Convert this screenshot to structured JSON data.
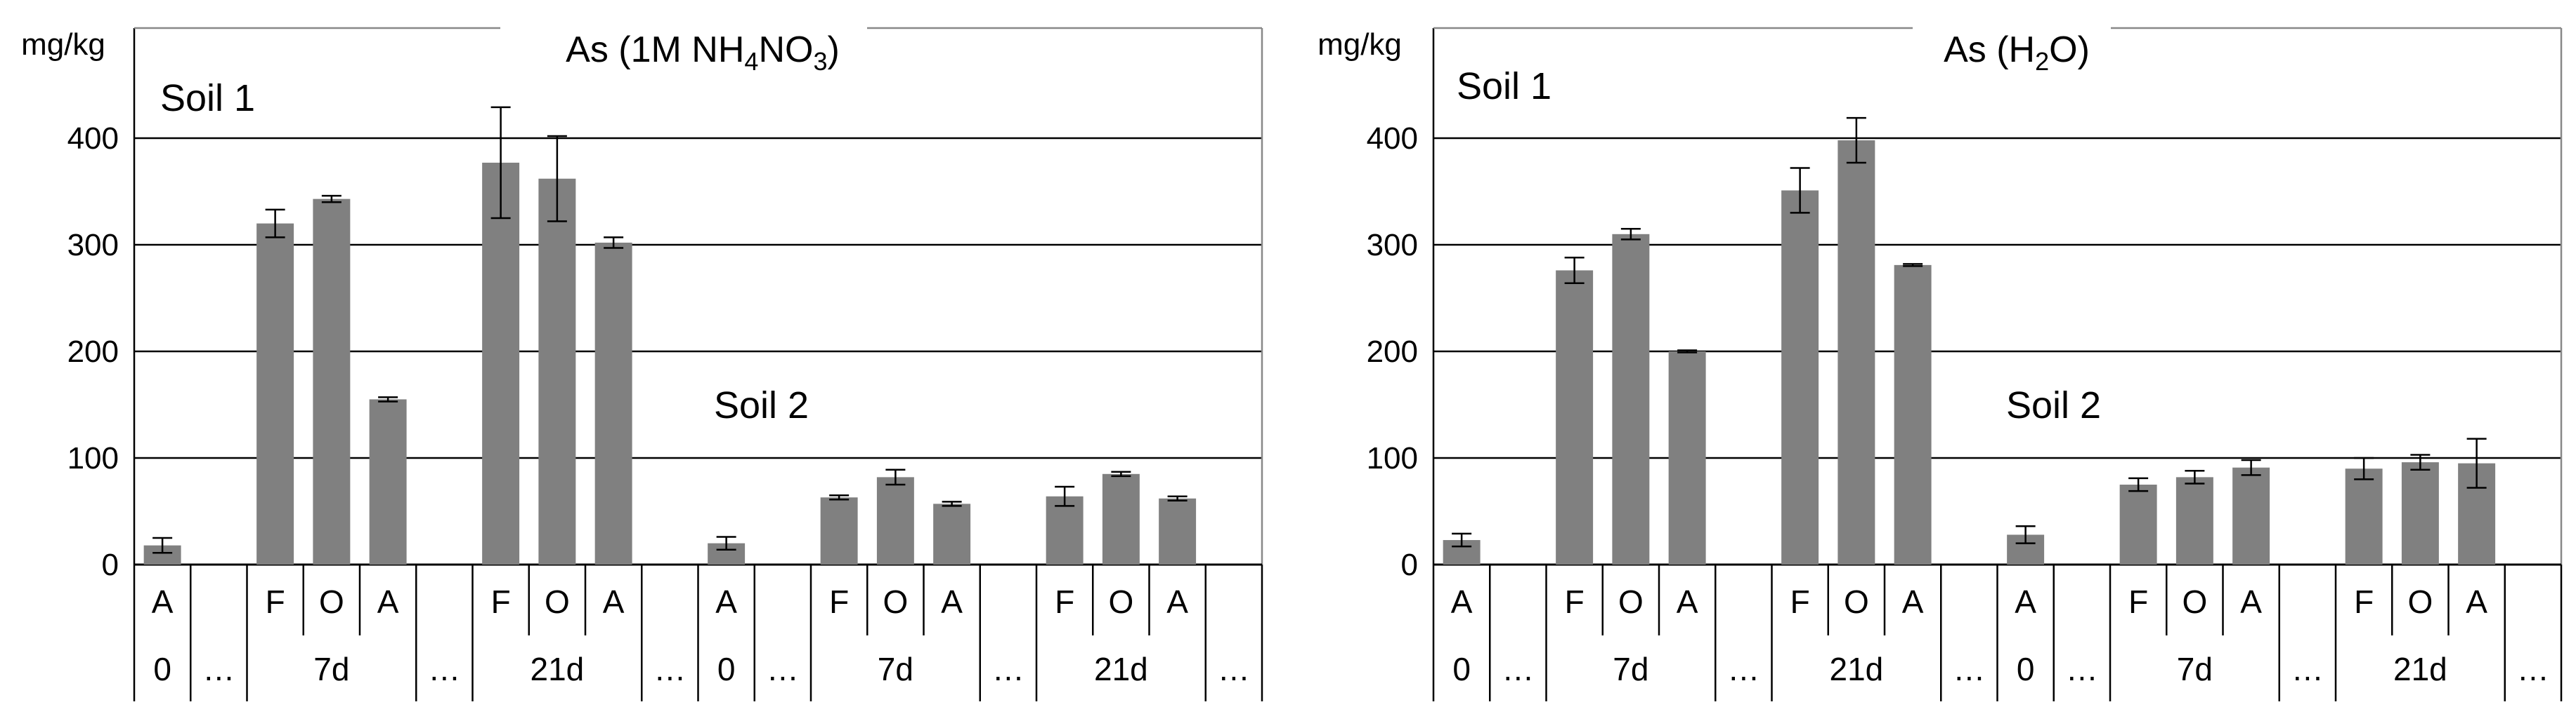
{
  "chart_data": [
    {
      "type": "bar",
      "title_prefix": "As (1M NH",
      "title_sub1": "4",
      "title_mid": "NO",
      "title_sub2": "3",
      "title_suffix": ")",
      "ylabel": "mg/kg",
      "ylim": [
        0,
        400
      ],
      "yticks": [
        0,
        100,
        200,
        300,
        400
      ],
      "grid": true,
      "bar_color": "#808080",
      "soil_labels": [
        "Soil 1",
        "Soil 2"
      ],
      "letter_row": [
        "A",
        "",
        "F",
        "O",
        "A",
        "",
        "F",
        "O",
        "A",
        "",
        "A",
        "",
        "F",
        "O",
        "A",
        "",
        "F",
        "O",
        "A",
        ""
      ],
      "time_row": [
        "0",
        "…",
        "7d",
        "…",
        "21d",
        "…",
        "0",
        "…",
        "7d",
        "…",
        "21d",
        "…"
      ],
      "values": [
        18,
        null,
        320,
        343,
        155,
        null,
        377,
        362,
        302,
        null,
        20,
        null,
        63,
        82,
        57,
        null,
        64,
        85,
        62,
        null
      ],
      "errors": [
        7,
        null,
        13,
        3,
        2,
        null,
        52,
        40,
        5,
        null,
        6,
        null,
        2,
        7,
        2,
        null,
        9,
        2,
        2,
        null
      ]
    },
    {
      "type": "bar",
      "title_prefix": "As (H",
      "title_sub1": "2",
      "title_mid": "",
      "title_sub2": "",
      "title_suffix": "O)",
      "ylabel": "mg/kg",
      "ylim": [
        0,
        400
      ],
      "yticks": [
        0,
        100,
        200,
        300,
        400
      ],
      "grid": true,
      "bar_color": "#808080",
      "soil_labels": [
        "Soil 1",
        "Soil 2"
      ],
      "letter_row": [
        "A",
        "",
        "F",
        "O",
        "A",
        "",
        "F",
        "O",
        "A",
        "",
        "A",
        "",
        "F",
        "O",
        "A",
        "",
        "F",
        "O",
        "A",
        ""
      ],
      "time_row": [
        "0",
        "…",
        "7d",
        "…",
        "21d",
        "…",
        "0",
        "…",
        "7d",
        "…",
        "21d",
        "…"
      ],
      "values": [
        23,
        null,
        276,
        310,
        200,
        null,
        351,
        398,
        281,
        null,
        28,
        null,
        75,
        82,
        91,
        null,
        90,
        96,
        95,
        null
      ],
      "errors": [
        6,
        null,
        12,
        5,
        1,
        null,
        21,
        21,
        1,
        null,
        8,
        null,
        6,
        6,
        7,
        null,
        10,
        7,
        23,
        null
      ]
    }
  ]
}
